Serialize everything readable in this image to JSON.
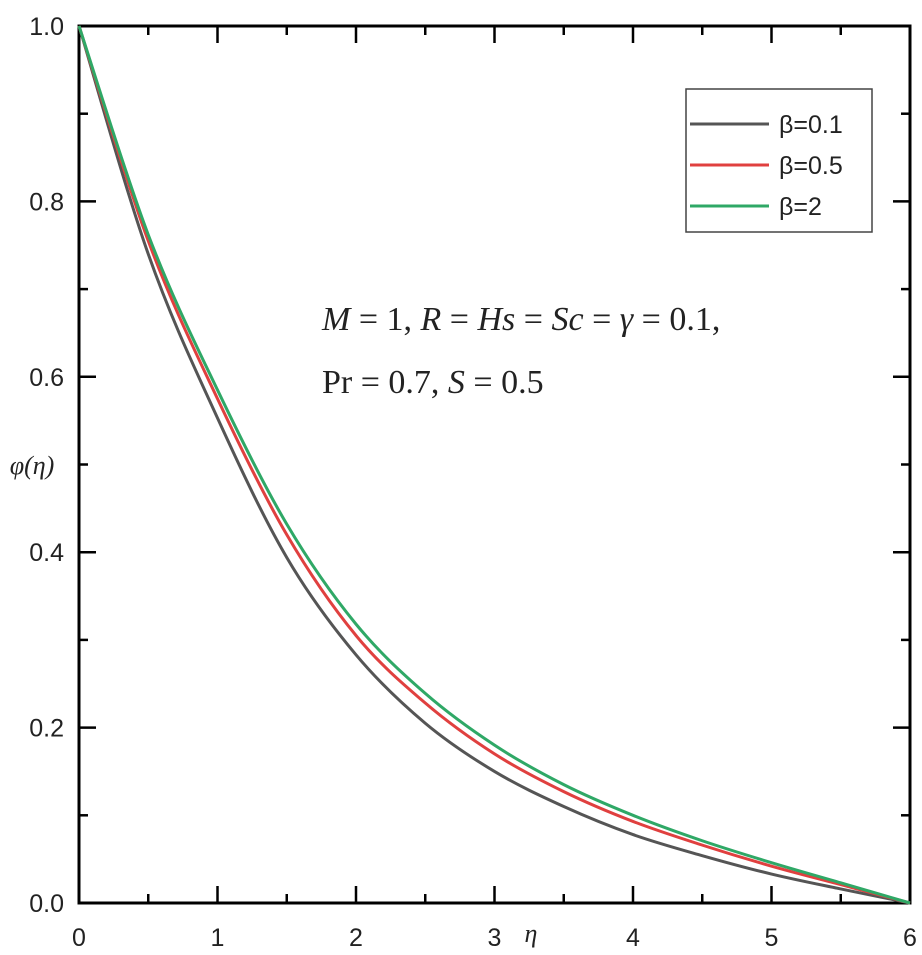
{
  "chart_data": {
    "type": "line",
    "title": "",
    "xlabel": "η",
    "ylabel": "φ(η)",
    "xlim": [
      0,
      6
    ],
    "ylim": [
      0,
      1.0
    ],
    "grid": false,
    "legend_position": "upper right",
    "xticks": [
      "0",
      "1",
      "2",
      "3",
      "4",
      "5",
      "6"
    ],
    "yticks": [
      "0.0",
      "0.2",
      "0.4",
      "0.6",
      "0.8",
      "1.0"
    ],
    "x": [
      0,
      0.5,
      1,
      1.5,
      2,
      2.5,
      3,
      3.5,
      4,
      4.5,
      5,
      5.5,
      6
    ],
    "series": [
      {
        "name": "β=0.1",
        "color": "#555555",
        "values": [
          1.0,
          0.74,
          0.553,
          0.394,
          0.283,
          0.205,
          0.15,
          0.11,
          0.078,
          0.054,
          0.033,
          0.016,
          0.0
        ]
      },
      {
        "name": "β=0.5",
        "color": "#e0403f",
        "values": [
          1.0,
          0.755,
          0.575,
          0.42,
          0.305,
          0.228,
          0.17,
          0.127,
          0.093,
          0.066,
          0.042,
          0.021,
          0.0
        ]
      },
      {
        "name": "β=2",
        "color": "#2fa866",
        "values": [
          1.0,
          0.762,
          0.585,
          0.432,
          0.318,
          0.239,
          0.18,
          0.135,
          0.1,
          0.071,
          0.046,
          0.023,
          0.0
        ]
      }
    ],
    "annotations": [
      "M = 1, R = Hs = Sc = γ = 0.1,",
      "Pr = 0.7, S = 0.5"
    ]
  },
  "axes": {
    "xlabel": "η",
    "ylabel": "φ(η)",
    "xticks": [
      "0",
      "1",
      "2",
      "3",
      "4",
      "5",
      "6"
    ],
    "yticks": [
      "0.0",
      "0.2",
      "0.4",
      "0.6",
      "0.8",
      "1.0"
    ]
  },
  "legend": {
    "items": [
      {
        "label": "β=0.1",
        "color": "#555555"
      },
      {
        "label": "β=0.5",
        "color": "#e0403f"
      },
      {
        "label": "β=2",
        "color": "#2fa866"
      }
    ]
  },
  "annotation": {
    "line1": "M = 1, R = Hs = Sc = γ = 0.1,",
    "line2": "Pr = 0.7, S = 0.5"
  }
}
